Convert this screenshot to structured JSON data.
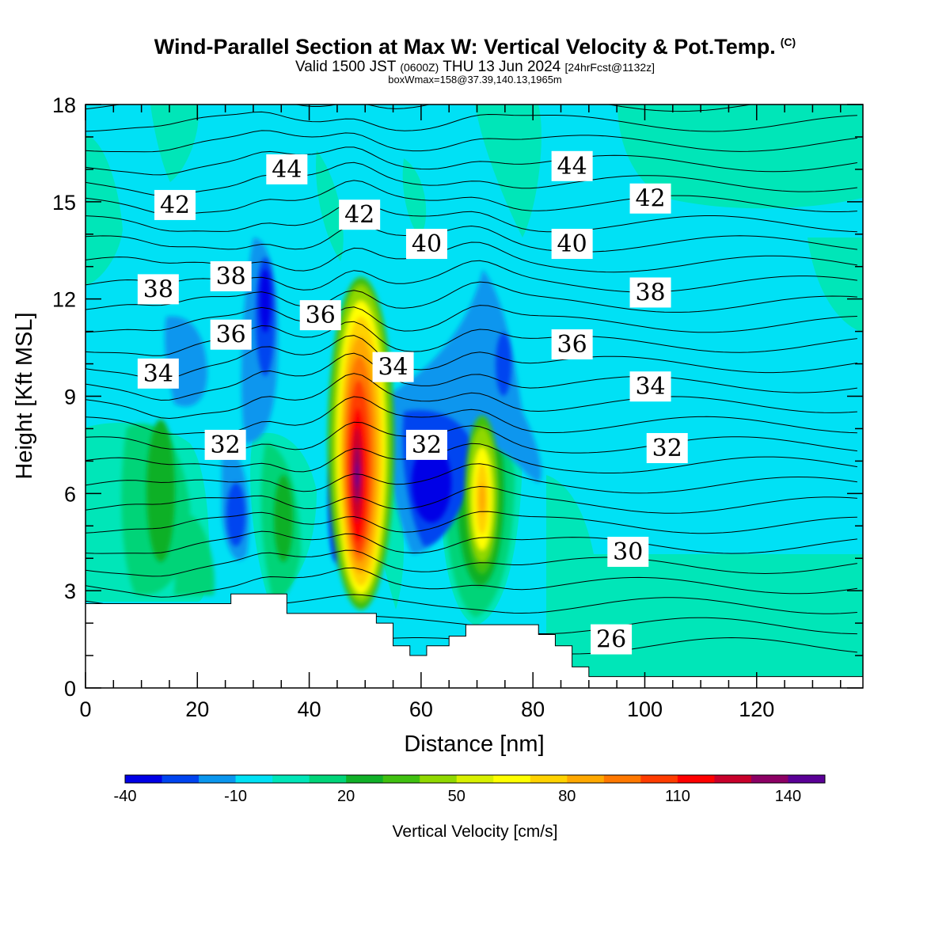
{
  "title": "Wind-Parallel Section at Max W: Vertical Velocity & Pot.Temp.",
  "copyright": "(C)",
  "subtitle": {
    "a": "Valid 1500 JST",
    "b": "(0600Z)",
    "c": "THU 13 Jun 2024",
    "d": "[24hrFcst@1132z]"
  },
  "box_info": "boxWmax=158@37.39,140.13,1965m",
  "chart_data": {
    "type": "heatmap",
    "xlabel": "Distance [nm]",
    "ylabel": "Height [Kft MSL]",
    "xlim": [
      0,
      139
    ],
    "ylim": [
      0,
      18
    ],
    "x_ticks": [
      "0",
      "20",
      "40",
      "60",
      "80",
      "100",
      "120"
    ],
    "y_ticks": [
      "0",
      "3",
      "6",
      "9",
      "12",
      "15",
      "18"
    ],
    "colorbar": {
      "title": "Vertical Velocity [cm/s]",
      "tick_labels": [
        "-40",
        "-10",
        "20",
        "50",
        "80",
        "110",
        "140"
      ],
      "colors": [
        "#0000e6",
        "#0044f0",
        "#0a96ee",
        "#00e1f5",
        "#00e6b8",
        "#00d478",
        "#10b028",
        "#40c010",
        "#90d800",
        "#d8f000",
        "#ffff00",
        "#ffd200",
        "#ffa800",
        "#ff7800",
        "#ff3c00",
        "#ff0000",
        "#c8002a",
        "#8c0064",
        "#5a0096"
      ]
    },
    "contour_labels": [
      {
        "text": "44",
        "x": 36,
        "y": 16.0
      },
      {
        "text": "44",
        "x": 87,
        "y": 16.1
      },
      {
        "text": "42",
        "x": 16,
        "y": 14.9
      },
      {
        "text": "42",
        "x": 49,
        "y": 14.6
      },
      {
        "text": "42",
        "x": 101,
        "y": 15.1
      },
      {
        "text": "40",
        "x": 61,
        "y": 13.7
      },
      {
        "text": "40",
        "x": 87,
        "y": 13.7
      },
      {
        "text": "38",
        "x": 13,
        "y": 12.3
      },
      {
        "text": "38",
        "x": 26,
        "y": 12.7
      },
      {
        "text": "38",
        "x": 101,
        "y": 12.2
      },
      {
        "text": "36",
        "x": 26,
        "y": 10.9
      },
      {
        "text": "36",
        "x": 42,
        "y": 11.5
      },
      {
        "text": "36",
        "x": 87,
        "y": 10.6
      },
      {
        "text": "34",
        "x": 13,
        "y": 9.7
      },
      {
        "text": "34",
        "x": 55,
        "y": 9.9
      },
      {
        "text": "34",
        "x": 101,
        "y": 9.3
      },
      {
        "text": "32",
        "x": 25,
        "y": 7.5
      },
      {
        "text": "32",
        "x": 61,
        "y": 7.5
      },
      {
        "text": "32",
        "x": 104,
        "y": 7.4
      },
      {
        "text": "30",
        "x": 97,
        "y": 4.2
      },
      {
        "text": "26",
        "x": 94,
        "y": 1.5
      }
    ],
    "terrain_kft": [
      [
        0,
        2.6
      ],
      [
        26,
        2.6
      ],
      [
        26,
        2.9
      ],
      [
        36,
        2.9
      ],
      [
        36,
        2.3
      ],
      [
        52,
        2.3
      ],
      [
        52,
        2.0
      ],
      [
        55,
        2.0
      ],
      [
        55,
        1.3
      ],
      [
        58,
        1.3
      ],
      [
        58,
        1.0
      ],
      [
        61,
        1.0
      ],
      [
        61,
        1.3
      ],
      [
        65,
        1.3
      ],
      [
        65,
        1.6
      ],
      [
        68,
        1.6
      ],
      [
        68,
        1.95
      ],
      [
        81,
        1.95
      ],
      [
        81,
        1.65
      ],
      [
        84,
        1.65
      ],
      [
        84,
        1.3
      ],
      [
        87,
        1.3
      ],
      [
        87,
        0.65
      ],
      [
        90,
        0.65
      ],
      [
        90,
        0.35
      ],
      [
        139,
        0.35
      ]
    ]
  }
}
